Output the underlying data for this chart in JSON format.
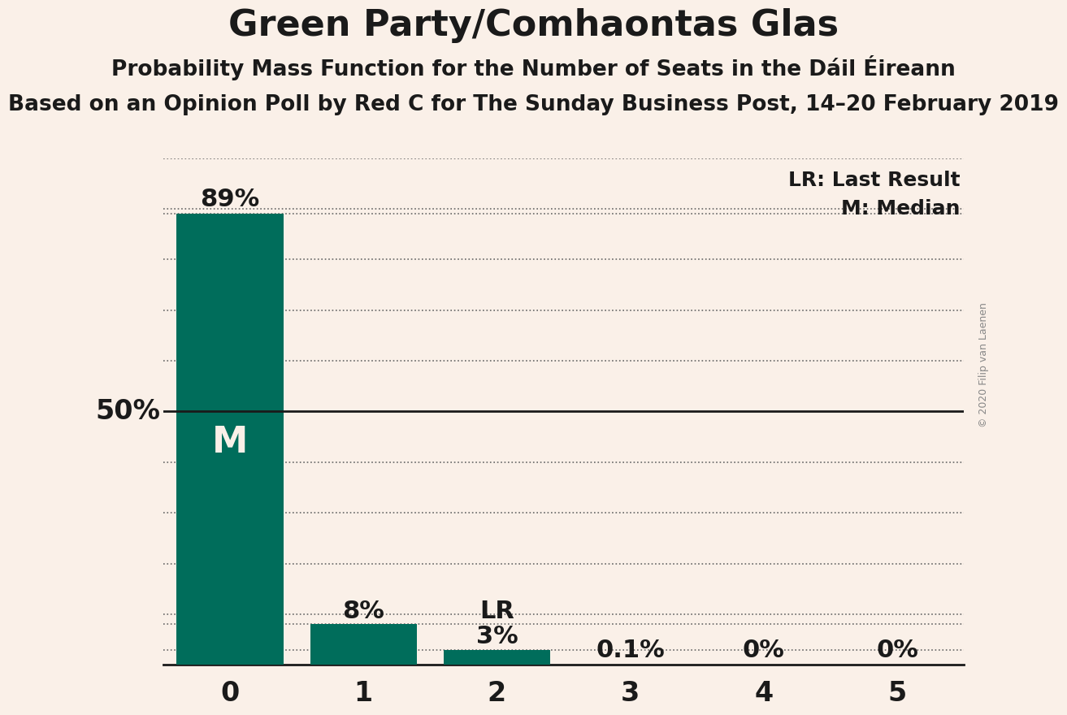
{
  "title": "Green Party/Comhaontas Glas",
  "subtitle1": "Probability Mass Function for the Number of Seats in the Dáil Éireann",
  "subtitle2": "Based on an Opinion Poll by Red C for The Sunday Business Post, 14–20 February 2019",
  "copyright": "© 2020 Filip van Laenen",
  "categories": [
    0,
    1,
    2,
    3,
    4,
    5
  ],
  "values": [
    0.89,
    0.08,
    0.03,
    0.001,
    0.0,
    0.0
  ],
  "bar_color": "#006d5b",
  "background_color": "#FAF0E8",
  "fifty_pct_line_color": "#1a1a1a",
  "dotted_line_color": "#666666",
  "ylim": [
    0,
    1.0
  ],
  "ylabel_50pct": "50%",
  "legend_lr": "LR: Last Result",
  "legend_m": "M: Median",
  "value_labels": [
    "89%",
    "8%",
    "3%",
    "0.1%",
    "0%",
    "0%"
  ],
  "title_fontsize": 32,
  "subtitle1_fontsize": 19,
  "subtitle2_fontsize": 19,
  "tick_fontsize": 24,
  "label_fontsize": 24,
  "bar_text_fontsize": 22,
  "legend_fontsize": 18,
  "copyright_fontsize": 9
}
